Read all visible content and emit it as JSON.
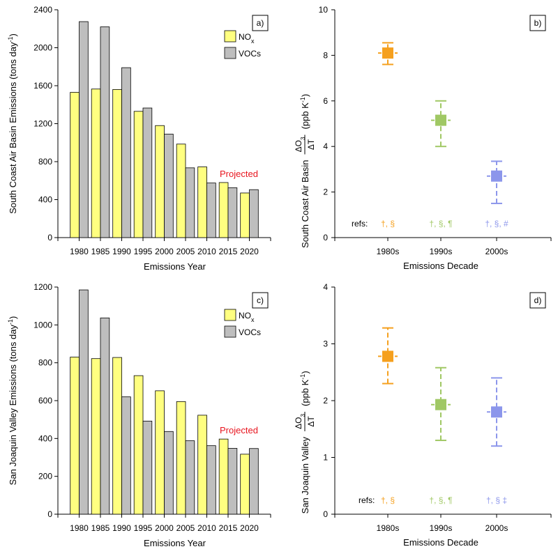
{
  "chart_data": [
    {
      "type": "bar",
      "panel_label": "a)",
      "categories": [
        "1980",
        "1985",
        "1990",
        "1995",
        "2000",
        "2005",
        "2010",
        "2015",
        "2020"
      ],
      "series": [
        {
          "name": "NOx",
          "color": "#ffff80",
          "values": [
            1530,
            1565,
            1560,
            1330,
            1180,
            985,
            745,
            580,
            470
          ]
        },
        {
          "name": "VOCs",
          "color": "#bebebe",
          "values": [
            2275,
            2220,
            1790,
            1365,
            1090,
            735,
            575,
            525,
            505
          ]
        }
      ],
      "ylim": [
        0,
        2400
      ],
      "yticks": [
        0,
        400,
        800,
        1200,
        1600,
        2000,
        2400
      ],
      "ylabel": "South Coast Air Basin Emissions (tons day",
      "ylabel_sup": "-1",
      "ylabel_end": ")",
      "xlabel": "Emissions Year",
      "annotation": {
        "text": "Projected",
        "color": "#e8141e"
      },
      "legend": {
        "nox_main": "NO",
        "nox_sub": "x",
        "voc": "VOCs"
      }
    },
    {
      "type": "scatter",
      "panel_label": "b)",
      "categories": [
        "1980s",
        "1990s",
        "2000s"
      ],
      "points": [
        {
          "category": "1980s",
          "value": 8.1,
          "low": 7.6,
          "high": 8.55,
          "color": "#f5a01e",
          "refs": "†, §"
        },
        {
          "category": "1990s",
          "value": 5.15,
          "low": 4.0,
          "high": 6.0,
          "color": "#a0c864",
          "refs": "†, §, ¶"
        },
        {
          "category": "2000s",
          "value": 2.7,
          "low": 1.5,
          "high": 3.35,
          "color": "#8c96eb",
          "refs": "†, §, #"
        }
      ],
      "ylim": [
        0,
        10
      ],
      "yticks": [
        0,
        2,
        4,
        6,
        8,
        10
      ],
      "ylabel_region": "South Coast Air Basin",
      "ylabel_delta_num": "ΔO",
      "ylabel_delta_sub": "3",
      "ylabel_delta_den": "ΔT",
      "ylabel_units": "(ppb K",
      "ylabel_units_sup": "-1",
      "ylabel_units_end": ")",
      "xlabel": "Emissions Decade",
      "refs_label": "refs:"
    },
    {
      "type": "bar",
      "panel_label": "c)",
      "categories": [
        "1980",
        "1985",
        "1990",
        "1995",
        "2000",
        "2005",
        "2010",
        "2015",
        "2020"
      ],
      "series": [
        {
          "name": "NOx",
          "color": "#ffff80",
          "values": [
            830,
            822,
            828,
            732,
            652,
            595,
            523,
            397,
            317
          ]
        },
        {
          "name": "VOCs",
          "color": "#bebebe",
          "values": [
            1185,
            1037,
            620,
            492,
            437,
            388,
            362,
            348,
            347
          ]
        }
      ],
      "ylim": [
        0,
        1200
      ],
      "yticks": [
        0,
        200,
        400,
        600,
        800,
        1000,
        1200
      ],
      "ylabel": "San Joaquin Valley Emissions (tons day",
      "ylabel_sup": "-1",
      "ylabel_end": ")",
      "xlabel": "Emissions Year",
      "annotation": {
        "text": "Projected",
        "color": "#e8141e"
      },
      "legend": {
        "nox_main": "NO",
        "nox_sub": "x",
        "voc": "VOCs"
      }
    },
    {
      "type": "scatter",
      "panel_label": "d)",
      "categories": [
        "1980s",
        "1990s",
        "2000s"
      ],
      "points": [
        {
          "category": "1980s",
          "value": 2.78,
          "low": 2.3,
          "high": 3.28,
          "color": "#f5a01e",
          "refs": "†, §"
        },
        {
          "category": "1990s",
          "value": 1.93,
          "low": 1.3,
          "high": 2.58,
          "color": "#a0c864",
          "refs": "†, §, ¶"
        },
        {
          "category": "2000s",
          "value": 1.8,
          "low": 1.2,
          "high": 2.4,
          "color": "#8c96eb",
          "refs": "†, § ‡"
        }
      ],
      "ylim": [
        0,
        4
      ],
      "yticks": [
        0,
        1,
        2,
        3,
        4
      ],
      "ylabel_region": "San Joaquin Valley",
      "ylabel_delta_num": "ΔO",
      "ylabel_delta_sub": "3",
      "ylabel_delta_den": "ΔT",
      "ylabel_units": "(ppb K",
      "ylabel_units_sup": "-1",
      "ylabel_units_end": ")",
      "xlabel": "Emissions Decade",
      "refs_label": "refs:"
    }
  ]
}
